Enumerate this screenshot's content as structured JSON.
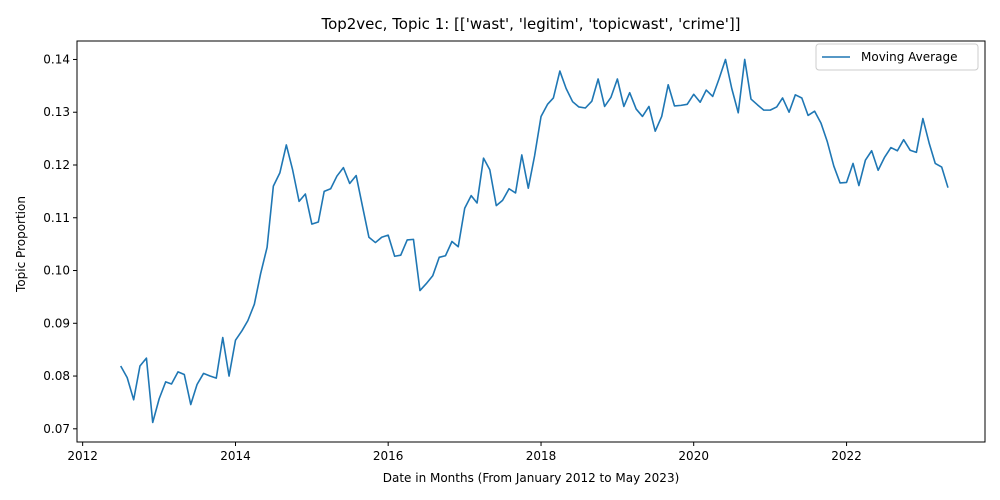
{
  "chart_data": {
    "type": "line",
    "title": "Top2vec, Topic 1: [['wast', 'legitim', 'topicwast', 'crime']]",
    "xlabel": "Date in Months (From January 2012 to May 2023)",
    "ylabel": "Topic Proportion",
    "xlim": [
      "2011-12-05",
      "2023-10-25"
    ],
    "ylim": [
      0.0675,
      0.1435
    ],
    "x_ticks": [
      "2012",
      "2014",
      "2016",
      "2018",
      "2020",
      "2022"
    ],
    "y_ticks": [
      "0.07",
      "0.08",
      "0.09",
      "0.10",
      "0.11",
      "0.12",
      "0.13",
      "0.14"
    ],
    "grid": false,
    "legend_position": "top-right",
    "series": [
      {
        "name": "Moving Average",
        "color": "#1f77b4",
        "x": [
          "2012-07",
          "2012-08",
          "2012-09",
          "2012-10",
          "2012-11",
          "2012-12",
          "2013-01",
          "2013-02",
          "2013-03",
          "2013-04",
          "2013-05",
          "2013-06",
          "2013-07",
          "2013-08",
          "2013-09",
          "2013-10",
          "2013-11",
          "2013-12",
          "2014-01",
          "2014-02",
          "2014-03",
          "2014-04",
          "2014-05",
          "2014-06",
          "2014-07",
          "2014-08",
          "2014-09",
          "2014-10",
          "2014-11",
          "2014-12",
          "2015-01",
          "2015-02",
          "2015-03",
          "2015-04",
          "2015-05",
          "2015-06",
          "2015-07",
          "2015-08",
          "2015-09",
          "2015-10",
          "2015-11",
          "2015-12",
          "2016-01",
          "2016-02",
          "2016-03",
          "2016-04",
          "2016-05",
          "2016-06",
          "2016-07",
          "2016-08",
          "2016-09",
          "2016-10",
          "2016-11",
          "2016-12",
          "2017-01",
          "2017-02",
          "2017-03",
          "2017-04",
          "2017-05",
          "2017-06",
          "2017-07",
          "2017-08",
          "2017-09",
          "2017-10",
          "2017-11",
          "2017-12",
          "2018-01",
          "2018-02",
          "2018-03",
          "2018-04",
          "2018-05",
          "2018-06",
          "2018-07",
          "2018-08",
          "2018-09",
          "2018-10",
          "2018-11",
          "2018-12",
          "2019-01",
          "2019-02",
          "2019-03",
          "2019-04",
          "2019-05",
          "2019-06",
          "2019-07",
          "2019-08",
          "2019-09",
          "2019-10",
          "2019-11",
          "2019-12",
          "2020-01",
          "2020-02",
          "2020-03",
          "2020-04",
          "2020-05",
          "2020-06",
          "2020-07",
          "2020-08",
          "2020-09",
          "2020-10",
          "2020-11",
          "2020-12",
          "2021-01",
          "2021-02",
          "2021-03",
          "2021-04",
          "2021-05",
          "2021-06",
          "2021-07",
          "2021-08",
          "2021-09",
          "2021-10",
          "2021-11",
          "2021-12",
          "2022-01",
          "2022-02",
          "2022-03",
          "2022-04",
          "2022-05",
          "2022-06",
          "2022-07",
          "2022-08",
          "2022-09",
          "2022-10",
          "2022-11",
          "2022-12",
          "2023-01",
          "2023-02",
          "2023-03",
          "2023-04",
          "2023-05"
        ],
        "values": [
          0.0819,
          0.0797,
          0.0755,
          0.0819,
          0.0834,
          0.0712,
          0.0757,
          0.0789,
          0.0785,
          0.0808,
          0.0803,
          0.0746,
          0.0784,
          0.0805,
          0.08,
          0.0796,
          0.0873,
          0.08,
          0.0868,
          0.0886,
          0.0905,
          0.0936,
          0.0994,
          0.1044,
          0.116,
          0.1185,
          0.1238,
          0.1191,
          0.1131,
          0.1145,
          0.1088,
          0.1092,
          0.115,
          0.1155,
          0.1179,
          0.1195,
          0.1165,
          0.118,
          0.112,
          0.1063,
          0.1053,
          0.1063,
          0.1067,
          0.1027,
          0.1029,
          0.1058,
          0.1059,
          0.0962,
          0.0975,
          0.099,
          0.1025,
          0.1028,
          0.1055,
          0.1045,
          0.1118,
          0.1142,
          0.1128,
          0.1213,
          0.1191,
          0.1123,
          0.1133,
          0.1155,
          0.1147,
          0.1219,
          0.1156,
          0.1217,
          0.1292,
          0.1315,
          0.1327,
          0.1378,
          0.1345,
          0.132,
          0.131,
          0.1308,
          0.1321,
          0.1363,
          0.1311,
          0.1328,
          0.1363,
          0.1311,
          0.1337,
          0.1306,
          0.1292,
          0.1311,
          0.1264,
          0.1292,
          0.1352,
          0.1312,
          0.1313,
          0.1315,
          0.1334,
          0.1319,
          0.1342,
          0.133,
          0.1363,
          0.14,
          0.1345,
          0.1299,
          0.14,
          0.1325,
          0.1314,
          0.1304,
          0.1304,
          0.131,
          0.1327,
          0.13,
          0.1333,
          0.1327,
          0.1294,
          0.1302,
          0.1279,
          0.1244,
          0.1198,
          0.1166,
          0.1167,
          0.1203,
          0.1161,
          0.1209,
          0.1227,
          0.119,
          0.1214,
          0.1233,
          0.1227,
          0.1248,
          0.1228,
          0.1224,
          0.1288,
          0.124,
          0.1203,
          0.1196,
          0.1157
        ]
      }
    ]
  }
}
